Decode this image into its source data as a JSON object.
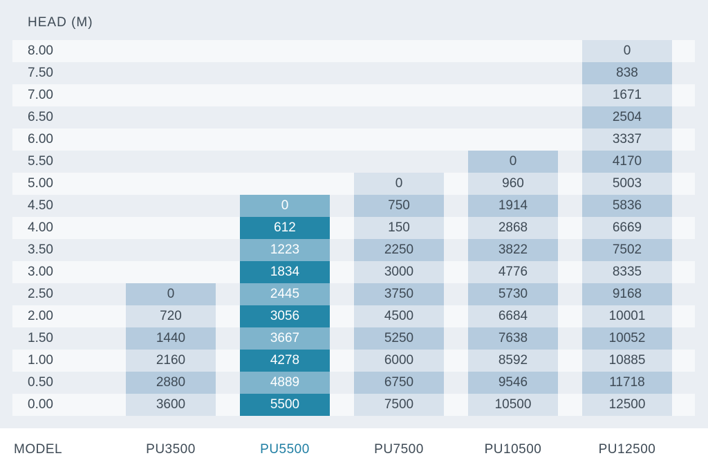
{
  "table": {
    "head_label": "HEAD  (M)",
    "heads": [
      "8.00",
      "7.50",
      "7.00",
      "6.50",
      "6.00",
      "5.50",
      "5.00",
      "4.50",
      "4.00",
      "3.50",
      "3.00",
      "2.50",
      "2.00",
      "1.50",
      "1.00",
      "0.50",
      "0.00"
    ],
    "model_label": "MODEL",
    "models": [
      {
        "name": "PU3500",
        "active": false,
        "values": [
          null,
          null,
          null,
          null,
          null,
          null,
          null,
          null,
          null,
          null,
          null,
          "0",
          "720",
          "1440",
          "2160",
          "2880",
          "3600"
        ]
      },
      {
        "name": "PU5500",
        "active": true,
        "values": [
          null,
          null,
          null,
          null,
          null,
          null,
          null,
          "0",
          "612",
          "1223",
          "1834",
          "2445",
          "3056",
          "3667",
          "4278",
          "4889",
          "5500"
        ]
      },
      {
        "name": "PU7500",
        "active": false,
        "values": [
          null,
          null,
          null,
          null,
          null,
          null,
          "0",
          "750",
          "150",
          "2250",
          "3000",
          "3750",
          "4500",
          "5250",
          "6000",
          "6750",
          "7500"
        ]
      },
      {
        "name": "PU10500",
        "active": false,
        "values": [
          null,
          null,
          null,
          null,
          null,
          "0",
          "960",
          "1914",
          "2868",
          "3822",
          "4776",
          "5730",
          "6684",
          "7638",
          "8592",
          "9546",
          "10500"
        ]
      },
      {
        "name": "PU12500",
        "active": false,
        "values": [
          "0",
          "838",
          "1671",
          "2504",
          "3337",
          "4170",
          "5003",
          "5836",
          "6669",
          "7502",
          "8335",
          "9168",
          "10001",
          "10052",
          "10885",
          "11718",
          "12500"
        ]
      }
    ]
  },
  "colors": {
    "panel_bg": "#eaeef3",
    "row_light": "#f6f8fa",
    "cell_light": "#d8e2ec",
    "cell_dark": "#b5cbde",
    "highlight_dark": "#2487a8",
    "highlight_light": "#7fb4cc",
    "active_model_text": "#1f7ea3",
    "text": "#3e4a55"
  }
}
